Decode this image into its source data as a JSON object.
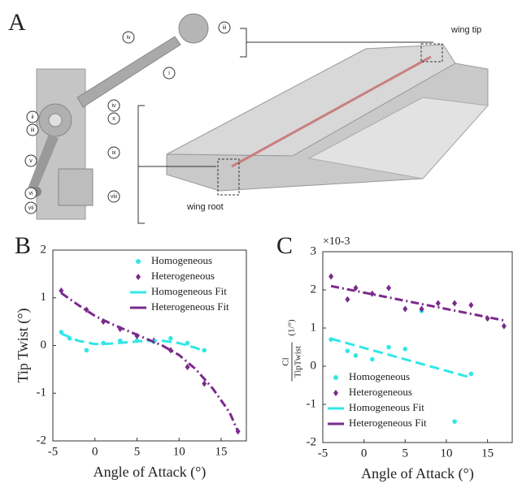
{
  "panel_labels": [
    "A",
    "B",
    "C"
  ],
  "panel_a": {
    "part_labels": [
      "iv",
      "iii",
      "i",
      "ii",
      "iii",
      "x",
      "iv",
      "ix",
      "v",
      "vi",
      "vii",
      "viii"
    ],
    "wing_tip": "wing tip",
    "wing_root": "wing root"
  },
  "chart_data": [
    {
      "type": "scatter-fit",
      "ylabel": "Tip Twist (°)",
      "xlabel": "Angle of Attack (°)",
      "xlim": [
        -5,
        18
      ],
      "xticks": [
        -5,
        0,
        5,
        10,
        15
      ],
      "ylim": [
        -2,
        2
      ],
      "yticks": [
        -2,
        -1,
        0,
        1,
        2
      ],
      "legend": "upper right",
      "series": [
        {
          "name": "Homogeneous",
          "color": "#33e6e6",
          "marker": "circle",
          "x": [
            -4,
            -3,
            -1,
            1,
            3,
            5,
            7,
            9,
            11,
            13
          ],
          "values": [
            0.28,
            0.15,
            -0.1,
            0.05,
            0.1,
            0.1,
            0.08,
            0.15,
            0.05,
            -0.1
          ]
        },
        {
          "name": "Heterogeneous",
          "color": "#7a2a8c",
          "marker": "diamond",
          "x": [
            -4,
            -1,
            1,
            3,
            5,
            7,
            9,
            11,
            13,
            17
          ],
          "values": [
            1.15,
            0.75,
            0.5,
            0.35,
            0.2,
            0.1,
            -0.1,
            -0.45,
            -0.8,
            -1.8
          ]
        },
        {
          "name": "Homogeneous Fit",
          "color": "#33e6e6",
          "marker": "line",
          "x": [
            -4,
            -2,
            0,
            2,
            4,
            6,
            8,
            10,
            12,
            13
          ],
          "values": [
            0.25,
            0.1,
            0.03,
            0.04,
            0.07,
            0.1,
            0.1,
            0.05,
            -0.05,
            -0.12
          ]
        },
        {
          "name": "Heterogeneous Fit",
          "color": "#7a2a8c",
          "marker": "line",
          "x": [
            -4,
            -2,
            0,
            2,
            4,
            6,
            8,
            10,
            12,
            14,
            16,
            17
          ],
          "values": [
            1.1,
            0.85,
            0.62,
            0.45,
            0.3,
            0.15,
            0.0,
            -0.2,
            -0.5,
            -0.9,
            -1.4,
            -1.8
          ]
        }
      ]
    },
    {
      "type": "scatter-fit",
      "ylabel_numerator": "Cl",
      "ylabel_denominator": "TipTwist",
      "ylabel_unit": "(1/°)",
      "offset_label": "×10-3",
      "xlabel": "Angle of Attack (°)",
      "xlim": [
        -5,
        18
      ],
      "xticks": [
        -5,
        0,
        5,
        10,
        15
      ],
      "ylim": [
        -2,
        3
      ],
      "yticks": [
        -2,
        -1,
        0,
        1,
        2,
        3
      ],
      "legend": "lower left",
      "series": [
        {
          "name": "Homogeneous",
          "color": "#33e6e6",
          "marker": "circle",
          "x": [
            -4,
            -2,
            -1,
            1,
            3,
            5,
            7,
            11,
            13
          ],
          "values": [
            0.7,
            0.4,
            0.28,
            0.18,
            0.5,
            0.45,
            1.45,
            -1.45,
            -0.2
          ]
        },
        {
          "name": "Heterogeneous",
          "color": "#7a2a8c",
          "marker": "diamond",
          "x": [
            -4,
            -2,
            -1,
            1,
            3,
            5,
            7,
            9,
            11,
            13,
            15,
            17
          ],
          "values": [
            2.35,
            1.75,
            2.05,
            1.9,
            2.05,
            1.5,
            1.5,
            1.65,
            1.65,
            1.6,
            1.25,
            1.05
          ]
        },
        {
          "name": "Homogeneous Fit",
          "color": "#33e6e6",
          "marker": "line",
          "x": [
            -4,
            13
          ],
          "values": [
            0.72,
            -0.3
          ]
        },
        {
          "name": "Heterogeneous Fit",
          "color": "#7a2a8c",
          "marker": "line",
          "x": [
            -4,
            17
          ],
          "values": [
            2.1,
            1.2
          ]
        }
      ]
    }
  ]
}
